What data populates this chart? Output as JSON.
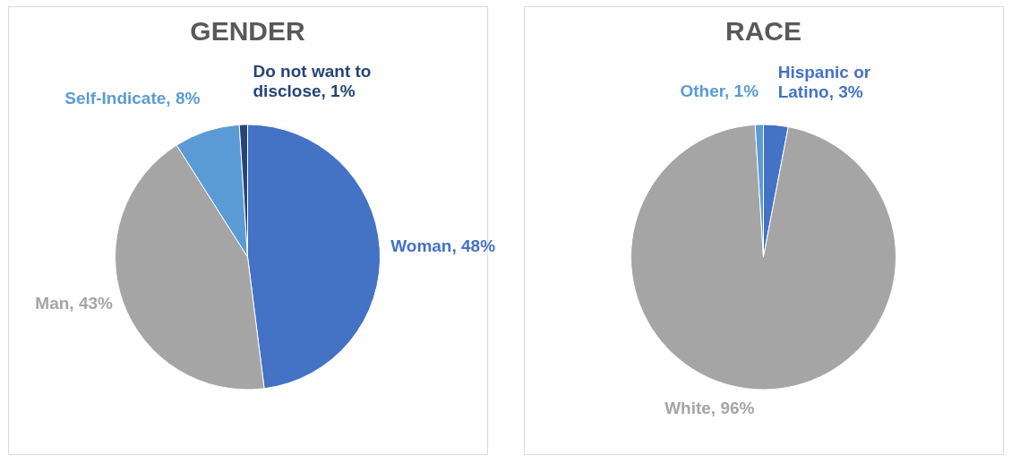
{
  "chart_data": [
    {
      "type": "pie",
      "title": "GENDER",
      "categories": [
        "Woman",
        "Man",
        "Self-Indicate",
        "Do not want to disclose"
      ],
      "values": [
        48,
        43,
        8,
        1
      ],
      "colors": [
        "#4472c4",
        "#a5a5a5",
        "#5b9bd5",
        "#264478"
      ],
      "value_labels": [
        "48%",
        "43%",
        "8%",
        "1%"
      ]
    },
    {
      "type": "pie",
      "title": "RACE",
      "categories": [
        "Hispanic or Latino",
        "White",
        "Other"
      ],
      "values": [
        3,
        96,
        1
      ],
      "colors": [
        "#4472c4",
        "#a5a5a5",
        "#5b9bd5"
      ],
      "value_labels": [
        "3%",
        "96%",
        "1%"
      ]
    }
  ]
}
